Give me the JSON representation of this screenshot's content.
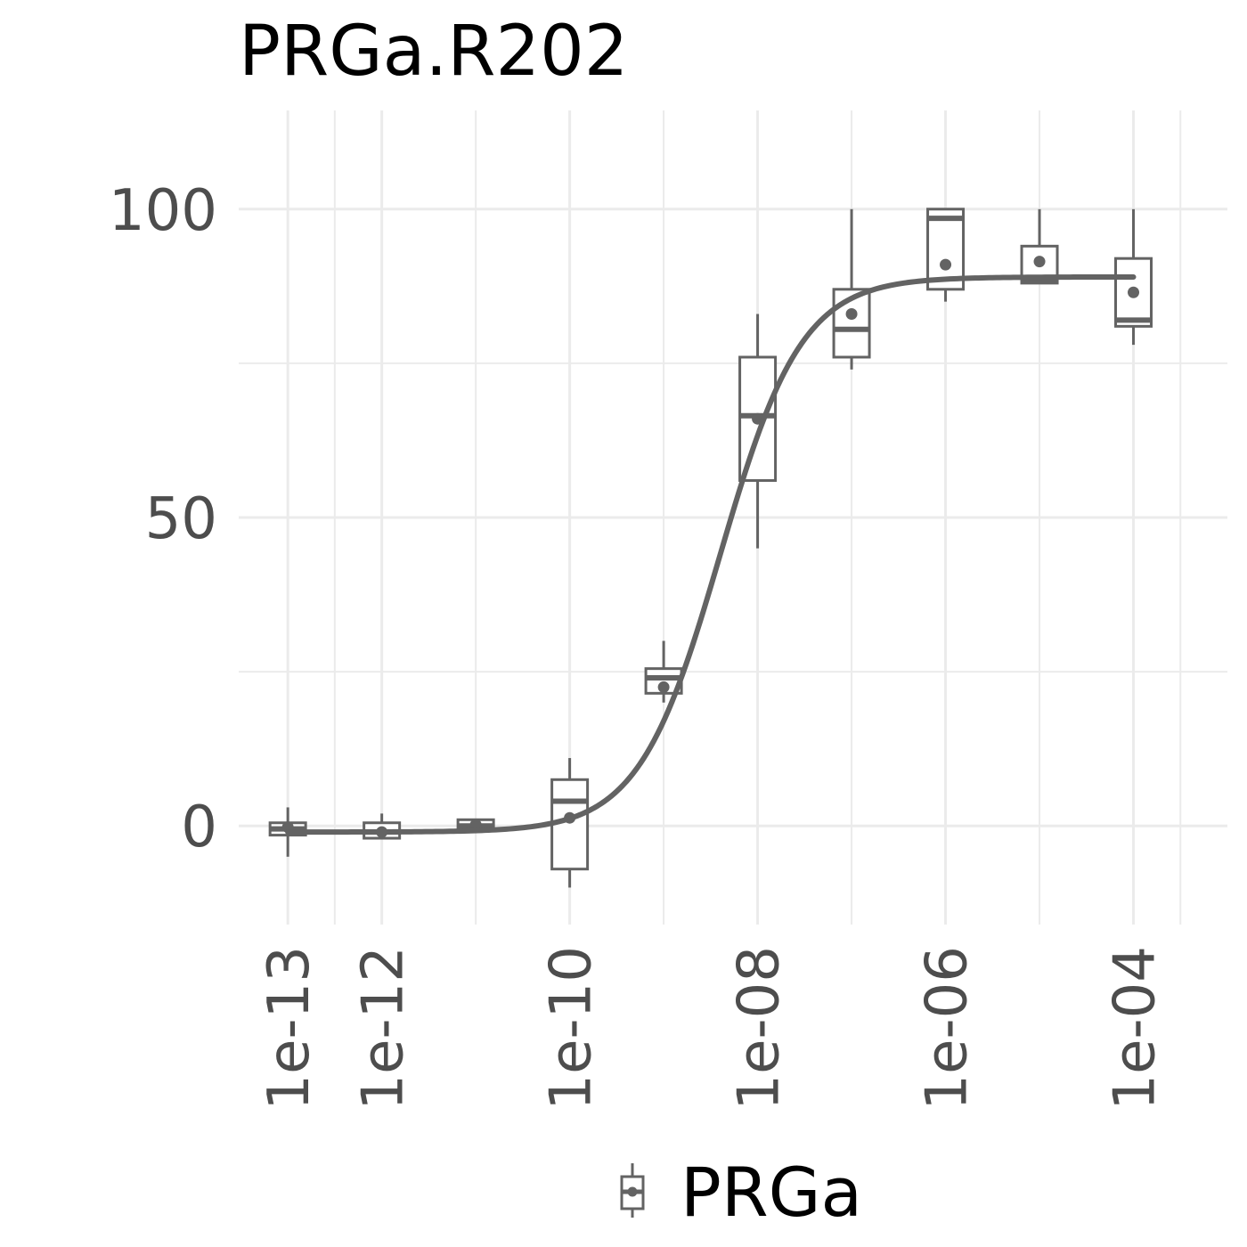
{
  "chart_data": {
    "type": "box",
    "title": "PRGa.R202",
    "xlabel": "",
    "ylabel": "",
    "x_scale": "log10",
    "xlim": [
      3e-14,
      0.001
    ],
    "ylim": [
      -16,
      116
    ],
    "x_ticks": [
      1e-13,
      1e-12,
      1e-10,
      1e-08,
      1e-06,
      0.0001
    ],
    "x_tick_labels": [
      "1e-13",
      "1e-12",
      "1e-10",
      "1e-08",
      "1e-06",
      "1e-04"
    ],
    "x_minor_gridlines": [
      3.16e-13,
      1e-11,
      1e-09,
      1e-07,
      1e-05,
      0.000316
    ],
    "y_ticks": [
      0,
      50,
      100
    ],
    "y_tick_labels": [
      "0",
      "50",
      "100"
    ],
    "y_minor_gridlines": [
      25,
      75
    ],
    "grid": true,
    "legend": {
      "position": "bottom",
      "entries": [
        "PRGa"
      ]
    },
    "series": [
      {
        "name": "PRGa",
        "color": "#636363",
        "boxes": [
          {
            "x": 1e-13,
            "min": -5,
            "q1": -1.5,
            "median": -0.5,
            "q3": 0.5,
            "max": 3,
            "mean": -0.2
          },
          {
            "x": 1e-12,
            "min": -2,
            "q1": -2,
            "median": -1,
            "q3": 0.5,
            "max": 2,
            "mean": -1
          },
          {
            "x": 1e-11,
            "min": -0.5,
            "q1": -0.5,
            "median": 0,
            "q3": 1,
            "max": 1,
            "mean": 0.2
          },
          {
            "x": 1e-10,
            "min": -10,
            "q1": -7,
            "median": 4,
            "q3": 7.5,
            "max": 11,
            "mean": 1.3
          },
          {
            "x": 1e-09,
            "min": 20,
            "q1": 21.5,
            "median": 24,
            "q3": 25.5,
            "max": 30,
            "mean": 22.5
          },
          {
            "x": 1e-08,
            "min": 45,
            "q1": 56,
            "median": 66.5,
            "q3": 76,
            "max": 83,
            "mean": 66
          },
          {
            "x": 1e-07,
            "min": 74,
            "q1": 76,
            "median": 80.5,
            "q3": 87,
            "max": 100,
            "mean": 83
          },
          {
            "x": 1e-06,
            "min": 85,
            "q1": 87,
            "median": 98.5,
            "q3": 100,
            "max": 100,
            "mean": 91
          },
          {
            "x": 1e-05,
            "min": 88,
            "q1": 88,
            "median": 88.5,
            "q3": 94,
            "max": 100,
            "mean": 91.5
          },
          {
            "x": 0.0001,
            "min": 78,
            "q1": 81,
            "median": 82,
            "q3": 92,
            "max": 100,
            "mean": 86.5
          }
        ],
        "curve": {
          "model": "4PL",
          "bottom": -1,
          "top": 89,
          "ec50": 4e-09,
          "hill": 1,
          "from": 1e-13,
          "to": 0.0001
        }
      }
    ]
  }
}
